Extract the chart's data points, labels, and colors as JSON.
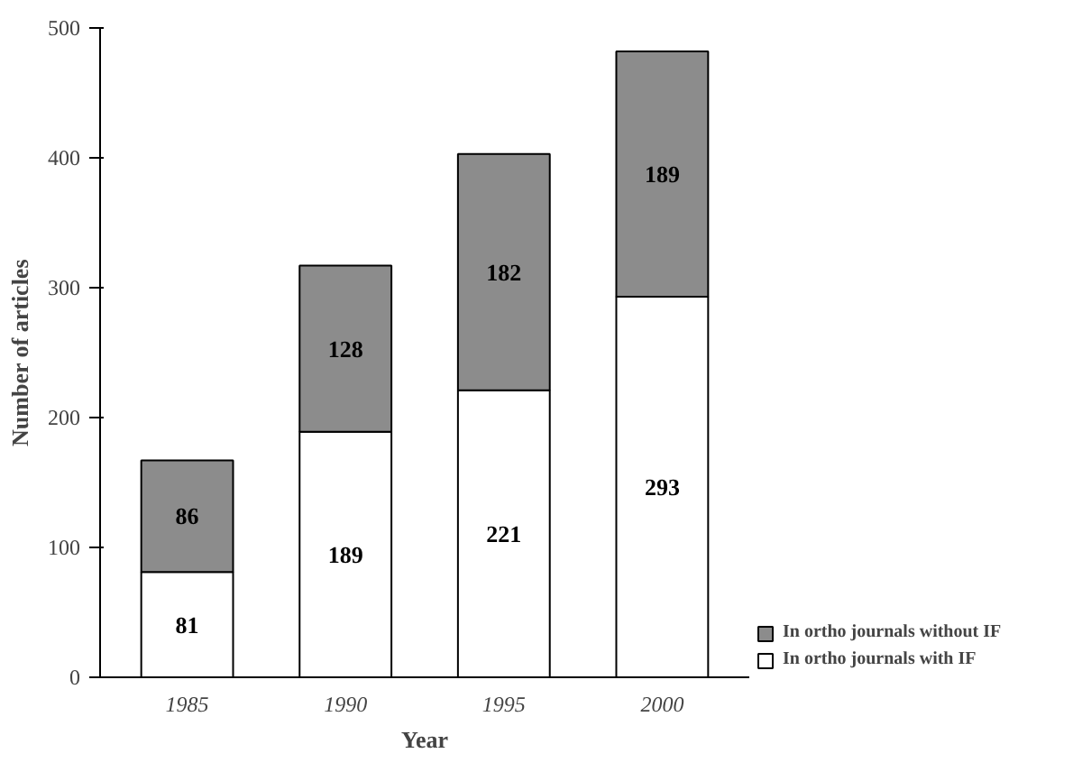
{
  "chart_data": {
    "type": "bar",
    "stacked": true,
    "xlabel": "Year",
    "ylabel": "Number of articles",
    "categories": [
      "1985",
      "1990",
      "1995",
      "2000"
    ],
    "series": [
      {
        "name": "In ortho journals with IF",
        "color": "#ffffff",
        "values": [
          81,
          189,
          221,
          293
        ]
      },
      {
        "name": "In ortho journals without IF",
        "color": "#8c8c8c",
        "values": [
          86,
          128,
          182,
          189
        ]
      }
    ],
    "ylim": [
      0,
      500
    ],
    "yticks": [
      0,
      100,
      200,
      300,
      400,
      500
    ],
    "data_labels": true,
    "grid": false,
    "legend": "bottom right"
  }
}
